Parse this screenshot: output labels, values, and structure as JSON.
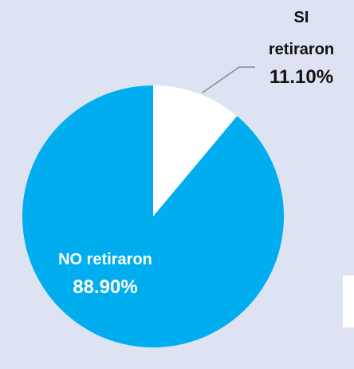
{
  "chart_data": {
    "type": "pie",
    "categories": [
      "SI retiraron",
      "NO retiraron"
    ],
    "values": [
      11.1,
      88.9
    ],
    "value_labels": [
      "11.10%",
      "88.90%"
    ],
    "colors": [
      "#ffffff",
      "#00aeef"
    ]
  }
}
